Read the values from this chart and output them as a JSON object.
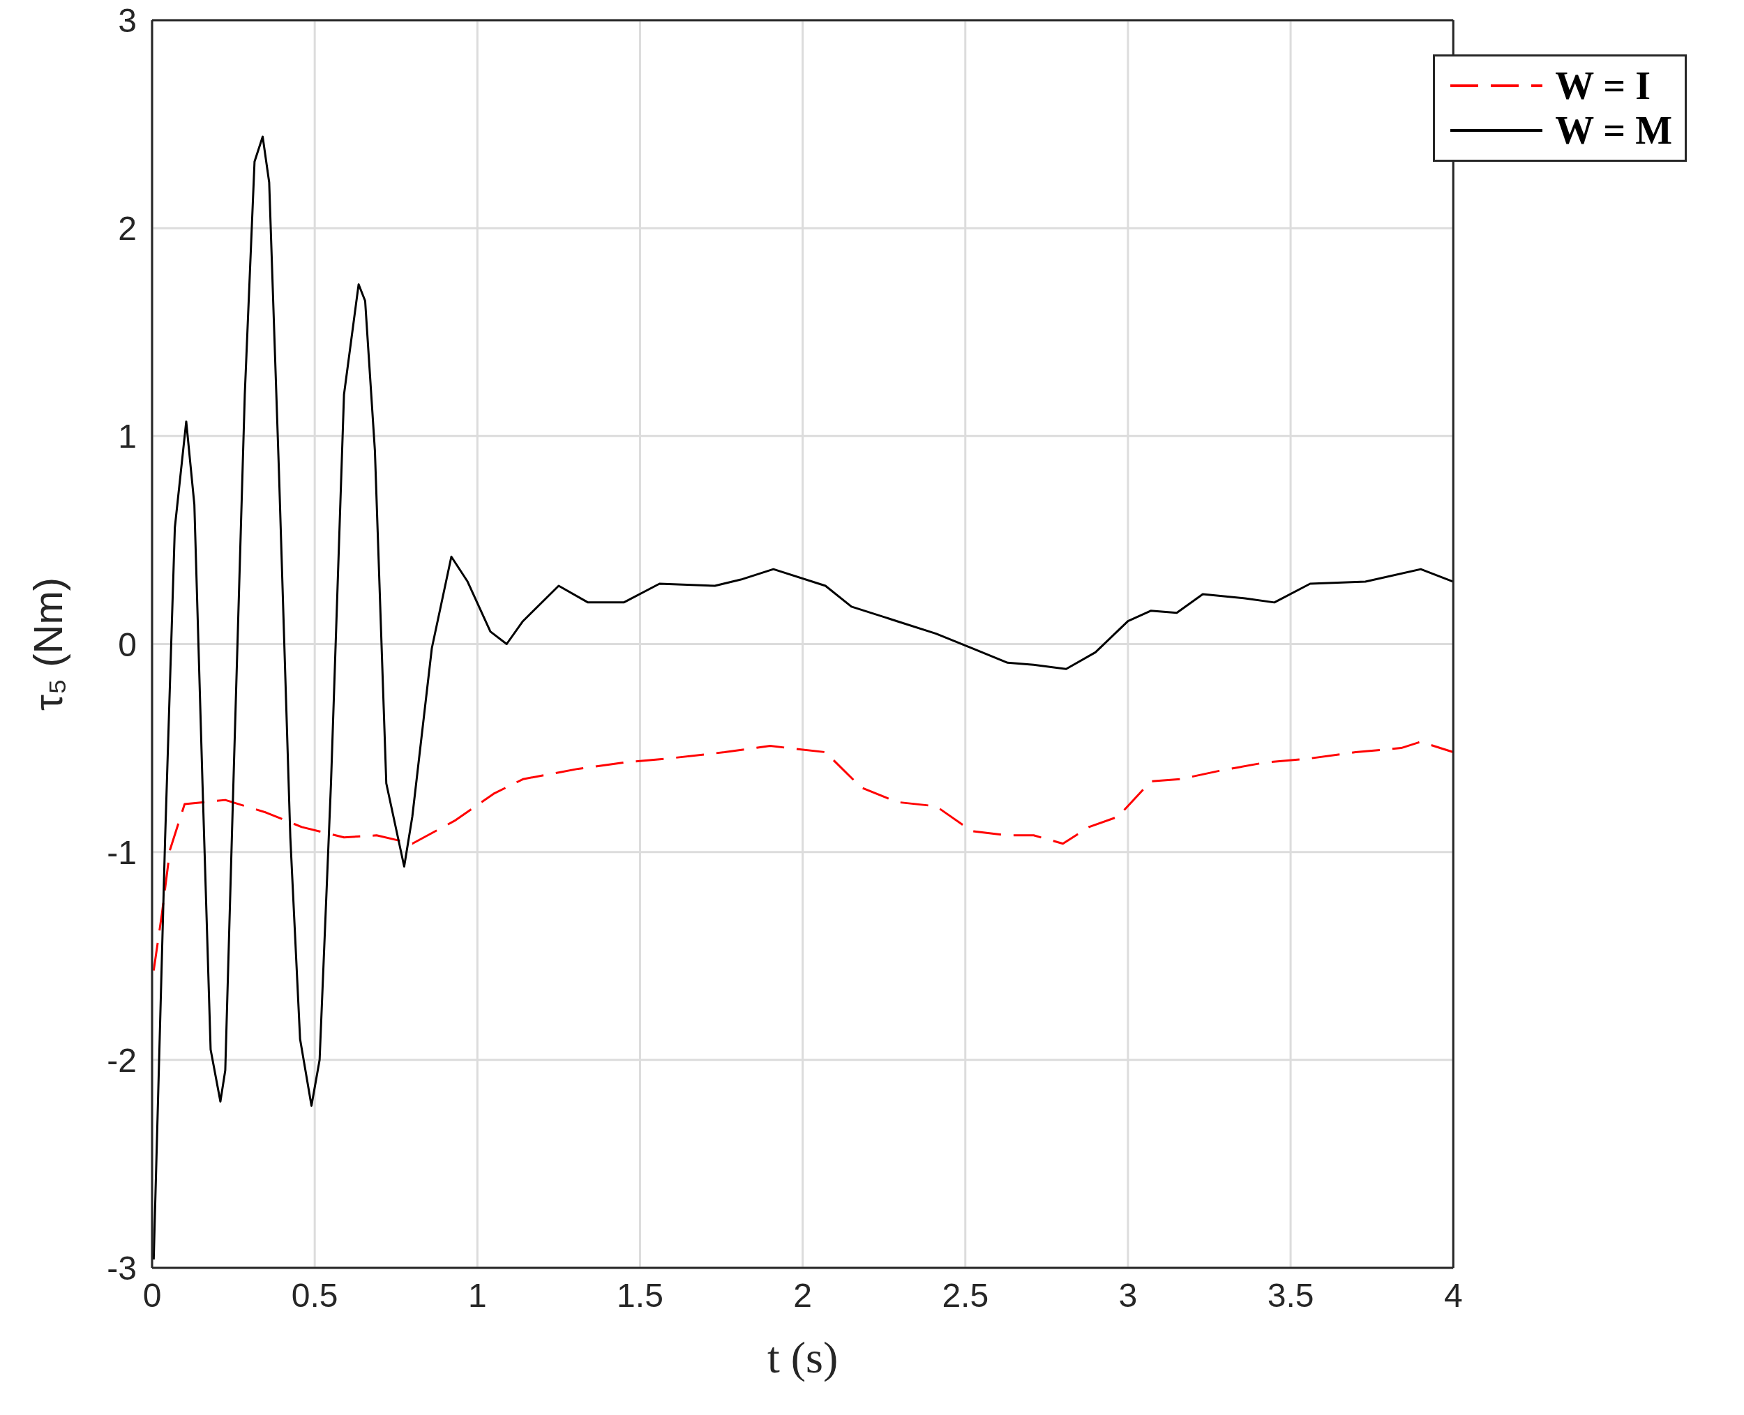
{
  "chart_data": {
    "type": "line",
    "xlabel": "t (s)",
    "ylabel": "τ₅ (Nm)",
    "xlim": [
      0,
      4
    ],
    "ylim": [
      -3,
      3
    ],
    "xticks": [
      0,
      0.5,
      1,
      1.5,
      2,
      2.5,
      3,
      3.5,
      4
    ],
    "yticks": [
      -3,
      -2,
      -1,
      0,
      1,
      2,
      3
    ],
    "grid": true,
    "legend": "top right",
    "marker": "none",
    "series": [
      {
        "name": "W = I",
        "color": "#ff0000",
        "line_style": "dashed",
        "x": [
          0.005,
          0.03,
          0.055,
          0.1,
          0.225,
          0.35,
          0.46,
          0.59,
          0.69,
          0.8,
          0.93,
          1.05,
          1.14,
          1.31,
          1.45,
          1.59,
          1.76,
          1.9,
          2.07,
          2.18,
          2.29,
          2.41,
          2.52,
          2.63,
          2.71,
          2.8,
          2.88,
          2.97,
          3.07,
          3.16,
          3.28,
          3.42,
          3.56,
          3.7,
          3.84,
          3.9,
          4.0
        ],
        "values": [
          -1.57,
          -1.3,
          -0.99,
          -0.77,
          -0.75,
          -0.81,
          -0.88,
          -0.93,
          -0.92,
          -0.96,
          -0.85,
          -0.72,
          -0.65,
          -0.6,
          -0.57,
          -0.55,
          -0.52,
          -0.49,
          -0.52,
          -0.69,
          -0.76,
          -0.78,
          -0.9,
          -0.92,
          -0.92,
          -0.96,
          -0.88,
          -0.83,
          -0.66,
          -0.65,
          -0.61,
          -0.57,
          -0.55,
          -0.52,
          -0.5,
          -0.47,
          -0.52
        ]
      },
      {
        "name": "W = M",
        "color": "#000000",
        "line_style": "solid",
        "x": [
          0.005,
          0.04,
          0.07,
          0.105,
          0.13,
          0.155,
          0.18,
          0.21,
          0.225,
          0.25,
          0.285,
          0.315,
          0.34,
          0.36,
          0.39,
          0.425,
          0.455,
          0.49,
          0.515,
          0.55,
          0.59,
          0.635,
          0.655,
          0.685,
          0.72,
          0.775,
          0.8,
          0.86,
          0.92,
          0.97,
          1.04,
          1.09,
          1.14,
          1.25,
          1.34,
          1.45,
          1.56,
          1.73,
          1.81,
          1.91,
          2.07,
          2.15,
          2.29,
          2.41,
          2.52,
          2.63,
          2.71,
          2.81,
          2.9,
          3.0,
          3.07,
          3.15,
          3.23,
          3.36,
          3.45,
          3.56,
          3.73,
          3.9,
          4.0
        ],
        "values": [
          -2.96,
          -0.94,
          0.56,
          1.07,
          0.67,
          -0.67,
          -1.95,
          -2.2,
          -2.05,
          -0.67,
          1.2,
          2.32,
          2.44,
          2.22,
          0.83,
          -0.93,
          -1.9,
          -2.22,
          -2.0,
          -0.67,
          1.2,
          1.73,
          1.65,
          0.93,
          -0.67,
          -1.07,
          -0.83,
          -0.02,
          0.42,
          0.3,
          0.06,
          0.0,
          0.11,
          0.28,
          0.2,
          0.2,
          0.29,
          0.28,
          0.31,
          0.36,
          0.28,
          0.18,
          0.11,
          0.05,
          -0.02,
          -0.09,
          -0.1,
          -0.12,
          -0.04,
          0.11,
          0.16,
          0.15,
          0.24,
          0.22,
          0.2,
          0.29,
          0.3,
          0.36,
          0.3
        ]
      }
    ]
  }
}
